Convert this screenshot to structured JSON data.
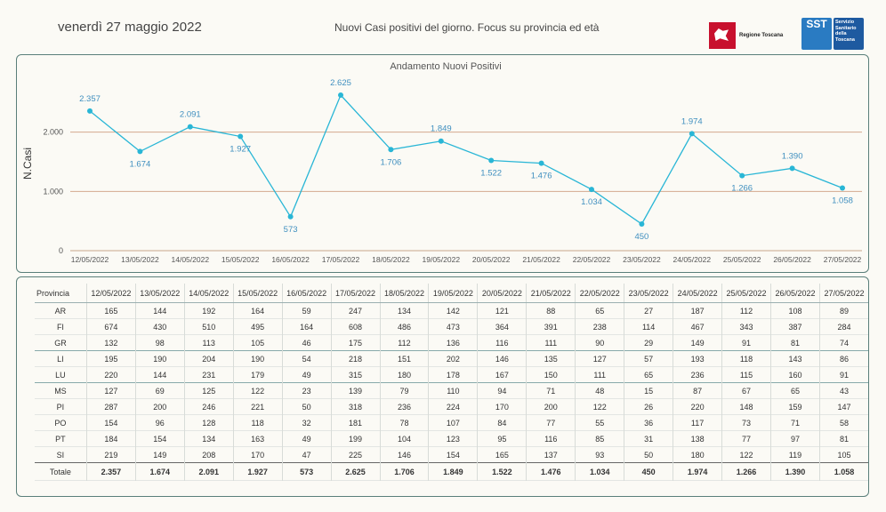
{
  "header": {
    "date": "venerdì 27 maggio 2022",
    "title": "Nuovi Casi positivi del giorno. Focus su provincia ed età",
    "logo_rt_text": "Regione Toscana",
    "logo_sst_mark": "SST",
    "logo_sst_text": [
      "Servizio",
      "Sanitario",
      "della",
      "Toscana"
    ]
  },
  "chart_data": {
    "type": "line",
    "title": "Andamento Nuovi Positivi",
    "ylabel": "N.Casi",
    "xlabel": "",
    "ylim": [
      0,
      2700
    ],
    "yticks": [
      0,
      1000,
      2000
    ],
    "ytick_labels": [
      "0",
      "1.000",
      "2.000"
    ],
    "grid": true,
    "line_color": "#29b6d6",
    "label_color": "#3f8fbf",
    "categories": [
      "12/05/2022",
      "13/05/2022",
      "14/05/2022",
      "15/05/2022",
      "16/05/2022",
      "17/05/2022",
      "18/05/2022",
      "19/05/2022",
      "20/05/2022",
      "21/05/2022",
      "22/05/2022",
      "23/05/2022",
      "24/05/2022",
      "25/05/2022",
      "26/05/2022",
      "27/05/2022"
    ],
    "values": [
      2357,
      1674,
      2091,
      1927,
      573,
      2625,
      1706,
      1849,
      1522,
      1476,
      1034,
      450,
      1974,
      1266,
      1390,
      1058
    ],
    "value_labels": [
      "2.357",
      "1.674",
      "2.091",
      "1.927",
      "573",
      "2.625",
      "1.706",
      "1.849",
      "1.522",
      "1.476",
      "1.034",
      "450",
      "1.974",
      "1.266",
      "1.390",
      "1.058"
    ]
  },
  "table": {
    "header_label": "Provincia",
    "columns": [
      "12/05/2022",
      "13/05/2022",
      "14/05/2022",
      "15/05/2022",
      "16/05/2022",
      "17/05/2022",
      "18/05/2022",
      "19/05/2022",
      "20/05/2022",
      "21/05/2022",
      "22/05/2022",
      "23/05/2022",
      "24/05/2022",
      "25/05/2022",
      "26/05/2022",
      "27/05/2022"
    ],
    "rows": [
      {
        "name": "AR",
        "values": [
          "165",
          "144",
          "192",
          "164",
          "59",
          "247",
          "134",
          "142",
          "121",
          "88",
          "65",
          "27",
          "187",
          "112",
          "108",
          "89"
        ]
      },
      {
        "name": "FI",
        "values": [
          "674",
          "430",
          "510",
          "495",
          "164",
          "608",
          "486",
          "473",
          "364",
          "391",
          "238",
          "114",
          "467",
          "343",
          "387",
          "284"
        ]
      },
      {
        "name": "GR",
        "values": [
          "132",
          "98",
          "113",
          "105",
          "46",
          "175",
          "112",
          "136",
          "116",
          "111",
          "90",
          "29",
          "149",
          "91",
          "81",
          "74"
        ]
      },
      {
        "name": "LI",
        "values": [
          "195",
          "190",
          "204",
          "190",
          "54",
          "218",
          "151",
          "202",
          "146",
          "135",
          "127",
          "57",
          "193",
          "118",
          "143",
          "86"
        ]
      },
      {
        "name": "LU",
        "values": [
          "220",
          "144",
          "231",
          "179",
          "49",
          "315",
          "180",
          "178",
          "167",
          "150",
          "111",
          "65",
          "236",
          "115",
          "160",
          "91"
        ]
      },
      {
        "name": "MS",
        "values": [
          "127",
          "69",
          "125",
          "122",
          "23",
          "139",
          "79",
          "110",
          "94",
          "71",
          "48",
          "15",
          "87",
          "67",
          "65",
          "43"
        ]
      },
      {
        "name": "PI",
        "values": [
          "287",
          "200",
          "246",
          "221",
          "50",
          "318",
          "236",
          "224",
          "170",
          "200",
          "122",
          "26",
          "220",
          "148",
          "159",
          "147"
        ]
      },
      {
        "name": "PO",
        "values": [
          "154",
          "96",
          "128",
          "118",
          "32",
          "181",
          "78",
          "107",
          "84",
          "77",
          "55",
          "36",
          "117",
          "73",
          "71",
          "58"
        ]
      },
      {
        "name": "PT",
        "values": [
          "184",
          "154",
          "134",
          "163",
          "49",
          "199",
          "104",
          "123",
          "95",
          "116",
          "85",
          "31",
          "138",
          "77",
          "97",
          "81"
        ]
      },
      {
        "name": "SI",
        "values": [
          "219",
          "149",
          "208",
          "170",
          "47",
          "225",
          "146",
          "154",
          "165",
          "137",
          "93",
          "50",
          "180",
          "122",
          "119",
          "105"
        ]
      }
    ],
    "total": {
      "name": "Totale",
      "values": [
        "2.357",
        "1.674",
        "2.091",
        "1.927",
        "573",
        "2.625",
        "1.706",
        "1.849",
        "1.522",
        "1.476",
        "1.034",
        "450",
        "1.974",
        "1.266",
        "1.390",
        "1.058"
      ]
    }
  }
}
